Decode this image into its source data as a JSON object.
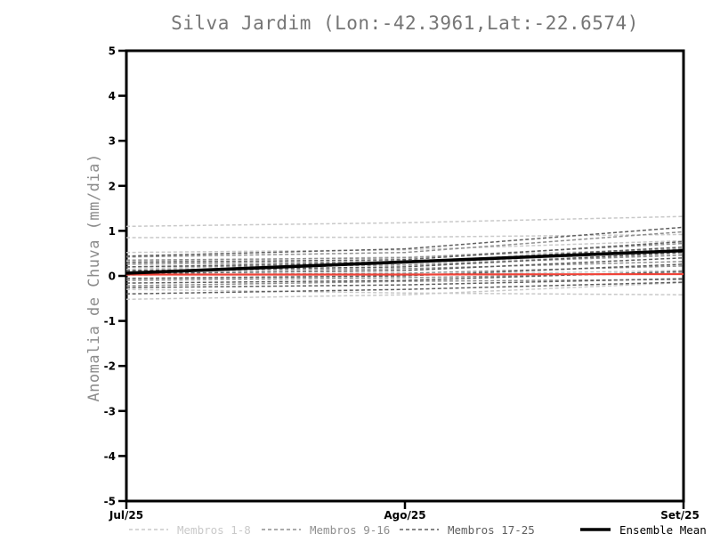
{
  "chart_data": {
    "type": "line",
    "title": "Silva Jardim (Lon:-42.3961,Lat:-22.6574)",
    "ylabel": "Anomalia de Chuva (mm/dia)",
    "xlabel": "",
    "x_tick_labels": [
      "Jul/25",
      "Ago/25",
      "Set/25"
    ],
    "y_ticks": [
      5,
      4,
      3,
      2,
      1,
      0,
      -1,
      -2,
      -3,
      -4,
      -5
    ],
    "ylim": [
      -5,
      5
    ],
    "grid": false,
    "legend_position": "bottom",
    "colors": {
      "frame": "#000000",
      "title": "#767676",
      "ylabel": "#8c8c8c",
      "tick_labels": "#000000",
      "members_1_8": "#c9c9c9",
      "members_9_16": "#8f8f8f",
      "members_17_25": "#5f5f5f",
      "ensemble_mean": "#000000",
      "reference_line": "#f04338"
    },
    "legend": [
      {
        "label": "Membros 1-8",
        "style": "dashed",
        "color_key": "members_1_8"
      },
      {
        "label": "Membros 9-16",
        "style": "dashed",
        "color_key": "members_9_16"
      },
      {
        "label": "Membros 17-25",
        "style": "dashed",
        "color_key": "members_17_25"
      },
      {
        "label": "Ensemble Mean",
        "style": "solid",
        "color_key": "ensemble_mean"
      }
    ],
    "x": [
      0,
      1,
      2
    ],
    "series": [
      {
        "name": "Membro 1",
        "group": "members_1_8",
        "values": [
          1.1,
          1.18,
          1.32
        ]
      },
      {
        "name": "Membro 2",
        "group": "members_1_8",
        "values": [
          0.85,
          0.86,
          0.92
        ]
      },
      {
        "name": "Membro 3",
        "group": "members_1_8",
        "values": [
          0.52,
          0.58,
          0.78
        ]
      },
      {
        "name": "Membro 4",
        "group": "members_1_8",
        "values": [
          0.32,
          0.42,
          0.6
        ]
      },
      {
        "name": "Membro 5",
        "group": "members_1_8",
        "values": [
          0.15,
          0.28,
          0.48
        ]
      },
      {
        "name": "Membro 6",
        "group": "members_1_8",
        "values": [
          -0.05,
          0.02,
          0.12
        ]
      },
      {
        "name": "Membro 7",
        "group": "members_1_8",
        "values": [
          -0.3,
          -0.38,
          -0.42
        ]
      },
      {
        "name": "Membro 8",
        "group": "members_1_8",
        "values": [
          -0.52,
          -0.42,
          -0.15
        ]
      },
      {
        "name": "Membro 9",
        "group": "members_9_16",
        "values": [
          0.42,
          0.52,
          0.98
        ]
      },
      {
        "name": "Membro 10",
        "group": "members_9_16",
        "values": [
          0.35,
          0.4,
          0.72
        ]
      },
      {
        "name": "Membro 11",
        "group": "members_9_16",
        "values": [
          0.26,
          0.32,
          0.6
        ]
      },
      {
        "name": "Membro 12",
        "group": "members_9_16",
        "values": [
          0.2,
          0.24,
          0.46
        ]
      },
      {
        "name": "Membro 13",
        "group": "members_9_16",
        "values": [
          0.1,
          0.16,
          0.32
        ]
      },
      {
        "name": "Membro 14",
        "group": "members_9_16",
        "values": [
          0.02,
          0.06,
          0.22
        ]
      },
      {
        "name": "Membro 15",
        "group": "members_9_16",
        "values": [
          -0.1,
          -0.04,
          0.06
        ]
      },
      {
        "name": "Membro 16",
        "group": "members_9_16",
        "values": [
          -0.22,
          -0.12,
          -0.08
        ]
      },
      {
        "name": "Membro 17",
        "group": "members_17_25",
        "values": [
          0.44,
          0.6,
          1.08
        ]
      },
      {
        "name": "Membro 18",
        "group": "members_17_25",
        "values": [
          0.3,
          0.36,
          0.76
        ]
      },
      {
        "name": "Membro 19",
        "group": "members_17_25",
        "values": [
          0.2,
          0.3,
          0.64
        ]
      },
      {
        "name": "Membro 20",
        "group": "members_17_25",
        "values": [
          0.12,
          0.2,
          0.52
        ]
      },
      {
        "name": "Membro 21",
        "group": "members_17_25",
        "values": [
          0.05,
          0.12,
          0.4
        ]
      },
      {
        "name": "Membro 22",
        "group": "members_17_25",
        "values": [
          -0.06,
          0.0,
          0.26
        ]
      },
      {
        "name": "Membro 23",
        "group": "members_17_25",
        "values": [
          -0.16,
          -0.1,
          0.1
        ]
      },
      {
        "name": "Membro 24",
        "group": "members_17_25",
        "values": [
          -0.26,
          -0.2,
          -0.06
        ]
      },
      {
        "name": "Membro 25",
        "group": "members_17_25",
        "values": [
          -0.4,
          -0.3,
          -0.14
        ]
      },
      {
        "name": "Reference",
        "group": "reference_line",
        "values": [
          0.03,
          0.03,
          0.04
        ]
      },
      {
        "name": "Ensemble Mean",
        "group": "ensemble_mean",
        "values": [
          0.06,
          0.31,
          0.56
        ]
      }
    ]
  }
}
